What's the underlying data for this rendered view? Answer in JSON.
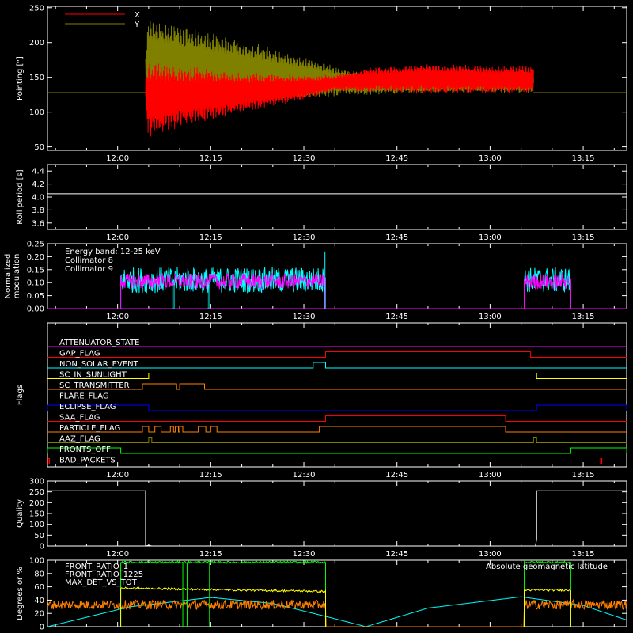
{
  "time_axis": {
    "ticks": [
      "12:00",
      "12:15",
      "12:30",
      "12:45",
      "13:00",
      "13:15"
    ],
    "tick_minutes": [
      720,
      735,
      750,
      765,
      780,
      795
    ],
    "range_minutes": [
      708.7,
      802
    ]
  },
  "colors": {
    "background": "#000000",
    "axes": "#ffffff",
    "red": "#ff0000",
    "olive": "#808000",
    "cyan": "#00ffff",
    "magenta": "#ff00ff",
    "orange": "#ff8000",
    "yellow": "#ffff00",
    "blue": "#0000ff",
    "green": "#00ff00",
    "white": "#ffffff"
  },
  "chart_data": [
    {
      "id": "pointing",
      "type": "line",
      "ylabel": "Pointing [\"]",
      "ylim": [
        45,
        252
      ],
      "yticks": [
        50,
        100,
        150,
        200,
        250
      ],
      "legend": [
        {
          "label": "X",
          "color": "#ff0000"
        },
        {
          "label": "Y",
          "color": "#808000"
        }
      ],
      "series": [
        {
          "name": "X",
          "color": "#ff0000",
          "x_minutes": [
            713,
            724,
            725,
            730,
            740,
            750,
            755,
            760,
            770,
            780,
            787
          ],
          "center": [
            128,
            128,
            118,
            122,
            128,
            135,
            142,
            146,
            148,
            147,
            147
          ],
          "amplitude": [
            0,
            0,
            55,
            45,
            30,
            18,
            12,
            18,
            22,
            20,
            20
          ]
        },
        {
          "name": "Y",
          "color": "#808000",
          "x_minutes": [
            713,
            724,
            725,
            730,
            740,
            750,
            755,
            760,
            770,
            780,
            787
          ],
          "center": [
            128,
            128,
            178,
            170,
            160,
            150,
            144,
            140,
            140,
            142,
            143
          ],
          "amplitude": [
            0,
            0,
            60,
            55,
            45,
            30,
            22,
            16,
            12,
            14,
            16
          ]
        }
      ],
      "flat_value": 128
    },
    {
      "id": "roll_period",
      "type": "line",
      "ylabel": "Roll period [s]",
      "ylim": [
        3.5,
        4.5
      ],
      "yticks": [
        3.6,
        3.8,
        4.0,
        4.2,
        4.4
      ],
      "series": [
        {
          "name": "",
          "color": "#ffffff",
          "value": 4.05
        }
      ]
    },
    {
      "id": "modulation",
      "type": "line",
      "ylabel": [
        "Normalized",
        "modulation"
      ],
      "ylim": [
        0,
        0.25
      ],
      "yticks": [
        0.0,
        0.05,
        0.1,
        0.15,
        0.2,
        0.25
      ],
      "annotations": [
        {
          "label": "Energy band: 12-25 keV",
          "color": "#ffffff"
        },
        {
          "label": "Collimator 8",
          "color": "#00ffff"
        },
        {
          "label": "Collimator 9",
          "color": "#ff00ff"
        }
      ],
      "active_intervals_minutes": [
        [
          720.5,
          753.5
        ],
        [
          785.5,
          793
        ]
      ],
      "series": [
        {
          "name": "Collimator 8",
          "color": "#00ffff",
          "mean": 0.11,
          "spread": 0.05
        },
        {
          "name": "Collimator 9",
          "color": "#ff00ff",
          "mean": 0.105,
          "spread": 0.03
        }
      ]
    },
    {
      "id": "flags",
      "type": "line",
      "ylabel": "Flags",
      "flags": [
        {
          "name": "ATTENUATOR_STATE",
          "color": "#ff00ff",
          "high": []
        },
        {
          "name": "GAP_FLAG",
          "color": "#ff0000",
          "high": [
            [
              753.5,
              786.5
            ]
          ]
        },
        {
          "name": "NON_SOLAR_EVENT",
          "color": "#00ffff",
          "high": [
            [
              751.5,
              753.5
            ]
          ]
        },
        {
          "name": "SC_IN_SUNLIGHT",
          "color": "#ffff00",
          "high": [
            [
              725,
              787.5
            ]
          ]
        },
        {
          "name": "SC_TRANSMITTER",
          "color": "#ff8000",
          "high": [
            [
              724,
              729.5
            ],
            [
              730,
              734
            ]
          ]
        },
        {
          "name": "FLARE_FLAG",
          "color": "#ffff00",
          "high": []
        },
        {
          "name": "ECLIPSE_FLAG",
          "color": "#0000ff",
          "high": [
            [
              708.7,
              725
            ],
            [
              787.5,
              802
            ]
          ]
        },
        {
          "name": "SAA_FLAG",
          "color": "#ff0000",
          "high": [
            [
              753.5,
              782.5
            ]
          ]
        },
        {
          "name": "PARTICLE_FLAG",
          "color": "#ff8000",
          "high": [
            [
              724,
              725
            ],
            [
              726,
              727
            ],
            [
              728.5,
              729
            ],
            [
              729.3,
              729.8
            ],
            [
              730,
              730.5
            ],
            [
              733,
              734.2
            ],
            [
              735,
              736
            ],
            [
              752.5,
              782.5
            ]
          ]
        },
        {
          "name": "AAZ_FLAG",
          "color": "#808000",
          "high": [
            [
              725,
              725.5
            ],
            [
              787,
              787.5
            ]
          ]
        },
        {
          "name": "FRONTS_OFF",
          "color": "#00ff00",
          "high": [
            [
              708.7,
              720.5
            ],
            [
              793,
              802
            ]
          ]
        },
        {
          "name": "BAD_PACKETS",
          "color": "#ff0000",
          "high": [
            [
              708.8,
              709
            ],
            [
              797.8,
              798
            ]
          ]
        }
      ]
    },
    {
      "id": "quality",
      "type": "line",
      "ylabel": "Quality",
      "ylim": [
        0,
        300
      ],
      "yticks": [
        0,
        50,
        100,
        150,
        200,
        250,
        300
      ],
      "segments": [
        {
          "x_minutes": [
            708.7,
            724.5
          ],
          "value": 255
        },
        {
          "x_minutes": [
            787.5,
            802
          ],
          "value": 255
        }
      ],
      "gap_value": 0
    },
    {
      "id": "ratios",
      "type": "line",
      "ylabel": "Degrees or %",
      "ylim": [
        0,
        100
      ],
      "yticks": [
        0,
        20,
        40,
        60,
        80,
        100
      ],
      "legend": [
        {
          "label": "FRONT_RATIO_1",
          "color": "#ffff00"
        },
        {
          "label": "FRONT_RATIO_1225",
          "color": "#00ff00"
        },
        {
          "label": "MAX_DET_VS_TOT",
          "color": "#ff8000"
        }
      ],
      "annotation": {
        "label": "Absolute geomagnetic latitude",
        "color": "#00ffff"
      },
      "series": [
        {
          "name": "FRONT_RATIO_1",
          "color": "#ffff00",
          "intervals": [
            [
              720.5,
              753.5,
              58,
              53
            ],
            [
              785.5,
              793,
              55,
              55
            ]
          ]
        },
        {
          "name": "FRONT_RATIO_1225",
          "color": "#00ff00",
          "intervals": [
            [
              720.5,
              753.5,
              97,
              97
            ],
            [
              785.5,
              793,
              97,
              97
            ]
          ]
        },
        {
          "name": "MAX_DET_VS_TOT",
          "color": "#ff8000",
          "mean": 33,
          "spread": 7
        },
        {
          "name": "Absolute geomagnetic latitude",
          "color": "#00ffff",
          "x_minutes": [
            708.7,
            722,
            735,
            745,
            755,
            760,
            770,
            785,
            795,
            802
          ],
          "values": [
            0,
            30,
            44,
            35,
            12,
            0,
            28,
            45,
            32,
            10
          ]
        }
      ]
    }
  ]
}
